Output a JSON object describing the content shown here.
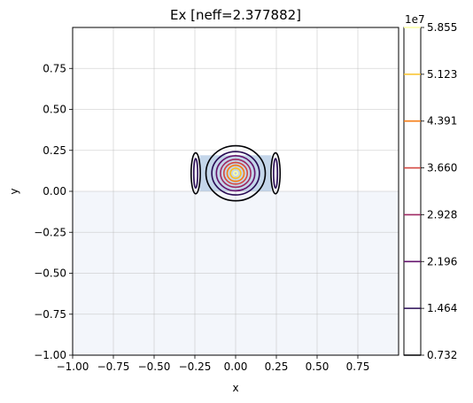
{
  "chart_data": {
    "type": "contour",
    "title": "Ex [neff=2.377882]",
    "xlabel": "x",
    "ylabel": "y",
    "xlim": [
      -1.0,
      1.0
    ],
    "ylim": [
      -1.0,
      1.0
    ],
    "x_ticks": [
      -1.0,
      -0.75,
      -0.5,
      -0.25,
      0.0,
      0.25,
      0.5,
      0.75
    ],
    "x_tick_labels": [
      "−1.00",
      "−0.75",
      "−0.50",
      "−0.25",
      "0.00",
      "0.25",
      "0.50",
      "0.75"
    ],
    "y_ticks": [
      -1.0,
      -0.75,
      -0.5,
      -0.25,
      0.0,
      0.25,
      0.5,
      0.75
    ],
    "y_tick_labels": [
      "−1.00",
      "−0.75",
      "−0.50",
      "−0.25",
      "0.00",
      "0.25",
      "0.50",
      "0.75"
    ],
    "grid": true,
    "regions": [
      {
        "name": "substrate",
        "x": [
          -1.0,
          1.0
        ],
        "y": [
          -1.0,
          0.0
        ],
        "color": "#f3f6fb"
      },
      {
        "name": "core",
        "x": [
          -0.22,
          0.22
        ],
        "y": [
          0.0,
          0.22
        ],
        "color": "#c4d6ea"
      }
    ],
    "center": [
      0.0,
      0.11
    ],
    "levels": [
      {
        "value": 0.732,
        "color": "#000004",
        "rx": 0.182,
        "ry": 0.168
      },
      {
        "value": 1.464,
        "color": "#280b54",
        "rx": 0.146,
        "ry": 0.132
      },
      {
        "value": 2.196,
        "color": "#65156e",
        "rx": 0.118,
        "ry": 0.107
      },
      {
        "value": 2.928,
        "color": "#9f2a63",
        "rx": 0.093,
        "ry": 0.085
      },
      {
        "value": 3.66,
        "color": "#d44842",
        "rx": 0.072,
        "ry": 0.066
      },
      {
        "value": 4.391,
        "color": "#f57d15",
        "rx": 0.052,
        "ry": 0.049
      },
      {
        "value": 5.123,
        "color": "#fac127",
        "rx": 0.032,
        "ry": 0.031
      },
      {
        "value": 5.855,
        "color": "#fcffa4",
        "rx": 0.012,
        "ry": 0.012
      }
    ],
    "side_lobes": [
      {
        "cx": -0.245,
        "cy": 0.11,
        "levels": [
          {
            "value": 0.732,
            "rx": 0.028,
            "ry": 0.125
          },
          {
            "value": 1.464,
            "rx": 0.012,
            "ry": 0.09
          }
        ]
      },
      {
        "cx": 0.245,
        "cy": 0.11,
        "levels": [
          {
            "value": 0.732,
            "rx": 0.028,
            "ry": 0.125
          },
          {
            "value": 1.464,
            "rx": 0.012,
            "ry": 0.09
          }
        ]
      }
    ],
    "colorbar": {
      "scale_label": "1e7",
      "ticks": [
        0.732,
        1.464,
        2.196,
        2.928,
        3.66,
        4.391,
        5.123,
        5.855
      ],
      "tick_labels": [
        "0.732",
        "1.464",
        "2.196",
        "2.928",
        "3.660",
        "4.391",
        "5.123",
        "5.855"
      ]
    }
  }
}
